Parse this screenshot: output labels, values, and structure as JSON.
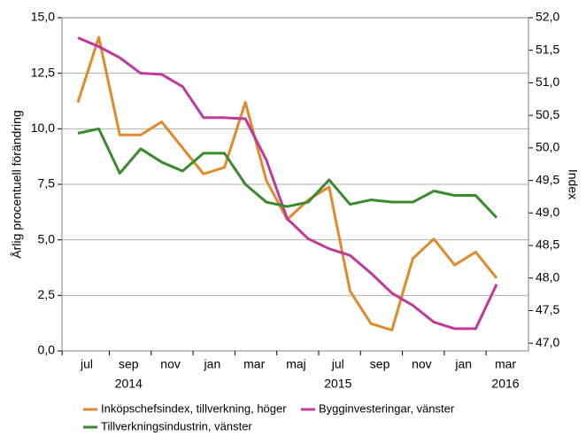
{
  "chart_data": {
    "type": "line",
    "categories": [
      "jul",
      null,
      "sep",
      null,
      "nov",
      null,
      "jan",
      null,
      "mar",
      null,
      "maj",
      null,
      "jul",
      null,
      "sep",
      null,
      "nov",
      null,
      "jan",
      null,
      "mar"
    ],
    "years": [
      null,
      null,
      "2014",
      null,
      null,
      null,
      null,
      null,
      null,
      null,
      null,
      null,
      "2015",
      null,
      null,
      null,
      null,
      null,
      null,
      null,
      "2016"
    ],
    "ylabel": "Årlig procentuell förändring",
    "y2label": "Index",
    "ylim": [
      0,
      15
    ],
    "yticks": [
      {
        "value": 0,
        "label": "0,0"
      },
      {
        "value": 2.5,
        "label": "2,5"
      },
      {
        "value": 5,
        "label": "5,0"
      },
      {
        "value": 7.5,
        "label": "7,5"
      },
      {
        "value": 10,
        "label": "10,0"
      },
      {
        "value": 12.5,
        "label": "12,5"
      },
      {
        "value": 15,
        "label": "15,0"
      }
    ],
    "y2lim": [
      46.88,
      52
    ],
    "y2ticks": [
      {
        "value": 47,
        "label": "47,0"
      },
      {
        "value": 47.5,
        "label": "47,5"
      },
      {
        "value": 48,
        "label": "48,0"
      },
      {
        "value": 48.5,
        "label": "48,5"
      },
      {
        "value": 49,
        "label": "49,0"
      },
      {
        "value": 49.5,
        "label": "49,5"
      },
      {
        "value": 50,
        "label": "50,0"
      },
      {
        "value": 50.5,
        "label": "50,5"
      },
      {
        "value": 51,
        "label": "51,0"
      },
      {
        "value": 51.5,
        "label": "51,5"
      },
      {
        "value": 52,
        "label": "52,0"
      }
    ],
    "grid": true,
    "legend": "bottom",
    "series": [
      {
        "name": "Inköpschefsindex, tillverkning, höger",
        "color": "#e08a2e",
        "axis": "y2",
        "values": [
          50.7,
          51.7,
          50.2,
          50.2,
          50.4,
          50.0,
          49.6,
          49.7,
          50.7,
          49.5,
          48.9,
          49.2,
          49.4,
          47.8,
          47.3,
          47.2,
          48.3,
          48.6,
          48.2,
          48.4,
          48.0
        ]
      },
      {
        "name": "Bygginvesteringar, vänster",
        "color": "#c03a9c",
        "values": [
          14.1,
          13.7,
          13.2,
          12.5,
          12.45,
          11.9,
          10.5,
          10.5,
          10.45,
          8.6,
          5.95,
          5.05,
          4.6,
          4.3,
          3.5,
          2.6,
          2.05,
          1.3,
          1.0,
          1.0,
          3.0
        ]
      },
      {
        "name": "Tillverkningsindustrin, vänster",
        "color": "#3a8a2e",
        "values": [
          9.8,
          10.0,
          8.0,
          9.1,
          8.5,
          8.1,
          8.9,
          8.9,
          7.5,
          6.7,
          6.5,
          6.7,
          7.7,
          6.6,
          6.8,
          6.7,
          6.7,
          7.2,
          7.0,
          7.0,
          6.0
        ]
      }
    ]
  }
}
